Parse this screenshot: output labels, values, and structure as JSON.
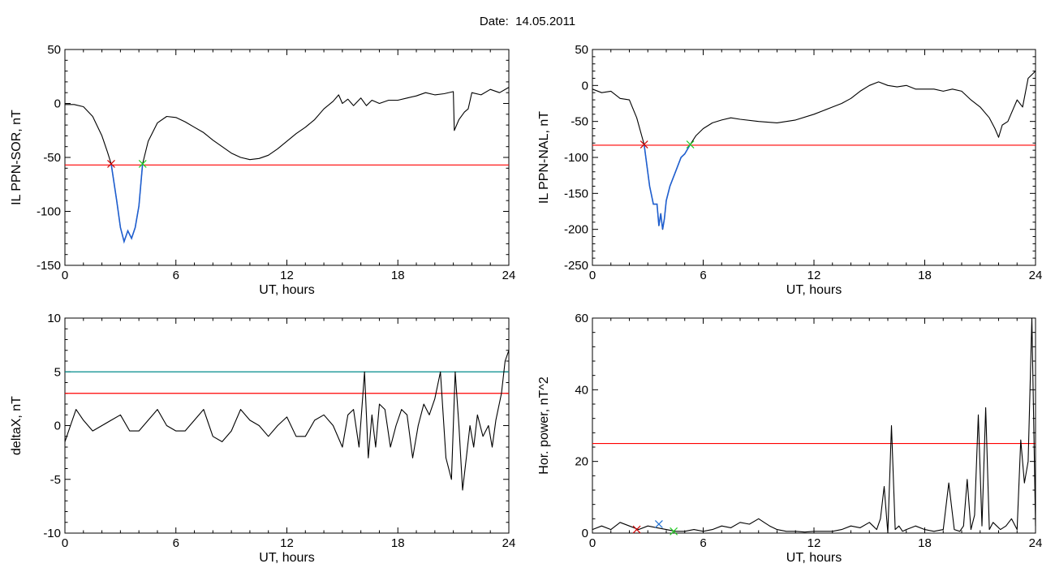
{
  "title": "Date:  14.05.2011",
  "colors": {
    "axis": "#000000",
    "data": "#000000",
    "threshold_red": "#ff0000",
    "threshold_cyan": "#008b8b",
    "interval": "#1f5fd0",
    "marker_start": "#cc0000",
    "marker_end": "#22cc22",
    "marker_blue": "#1f6fd0"
  },
  "chart_data": [
    {
      "type": "line",
      "title": "",
      "xlabel": "UT, hours",
      "ylabel": "IL PPN-SOR, nT",
      "xlim": [
        0,
        24
      ],
      "ylim": [
        -150,
        50
      ],
      "xticks": [
        0,
        6,
        12,
        18,
        24
      ],
      "yticks": [
        -150,
        -100,
        -50,
        0,
        50
      ],
      "threshold": {
        "y": -57,
        "color": "#ff0000"
      },
      "markers": [
        {
          "x": 2.5,
          "y": -56,
          "color": "#cc0000"
        },
        {
          "x": 4.2,
          "y": -56,
          "color": "#22cc22"
        }
      ],
      "highlight": {
        "from": 2.5,
        "to": 4.2,
        "color": "#1f5fd0"
      },
      "x": [
        0,
        0.5,
        1,
        1.5,
        2,
        2.3,
        2.5,
        2.8,
        3.0,
        3.2,
        3.4,
        3.6,
        3.8,
        4.0,
        4.2,
        4.5,
        5,
        5.5,
        6,
        6.5,
        7,
        7.5,
        8,
        8.5,
        9,
        9.5,
        10,
        10.5,
        11,
        11.5,
        12,
        12.5,
        13,
        13.5,
        14,
        14.5,
        14.8,
        15.0,
        15.3,
        15.6,
        16,
        16.3,
        16.6,
        17,
        17.5,
        18,
        18.5,
        19,
        19.5,
        20,
        20.5,
        21,
        21.05,
        21.3,
        21.6,
        21.8,
        22,
        22.5,
        23,
        23.5,
        24
      ],
      "y": [
        -1,
        -1,
        -3,
        -12,
        -30,
        -45,
        -56,
        -90,
        -115,
        -128,
        -118,
        -125,
        -115,
        -95,
        -56,
        -35,
        -18,
        -12,
        -13,
        -17,
        -22,
        -27,
        -34,
        -40,
        -46,
        -50,
        -52,
        -51,
        -48,
        -42,
        -35,
        -28,
        -22,
        -15,
        -5,
        2,
        8,
        0,
        4,
        -2,
        5,
        -2,
        3,
        0,
        3,
        3,
        5,
        7,
        10,
        8,
        9,
        11,
        -25,
        -15,
        -8,
        -5,
        10,
        8,
        13,
        10,
        15
      ]
    },
    {
      "type": "line",
      "title": "",
      "xlabel": "UT, hours",
      "ylabel": "IL PPN-NAL, nT",
      "xlim": [
        0,
        24
      ],
      "ylim": [
        -250,
        50
      ],
      "xticks": [
        0,
        6,
        12,
        18,
        24
      ],
      "yticks": [
        -250,
        -200,
        -150,
        -100,
        -50,
        0,
        50
      ],
      "threshold": {
        "y": -83,
        "color": "#ff0000"
      },
      "markers": [
        {
          "x": 2.8,
          "y": -82,
          "color": "#cc0000"
        },
        {
          "x": 5.3,
          "y": -82,
          "color": "#22cc22"
        }
      ],
      "highlight": {
        "from": 2.8,
        "to": 5.3,
        "color": "#1f5fd0"
      },
      "x": [
        0,
        0.5,
        1,
        1.5,
        2,
        2.4,
        2.8,
        3.1,
        3.3,
        3.5,
        3.6,
        3.7,
        3.8,
        3.9,
        4.0,
        4.2,
        4.5,
        4.8,
        5.0,
        5.3,
        5.6,
        6,
        6.5,
        7,
        7.5,
        8,
        9,
        10,
        11,
        12,
        12.5,
        13,
        13.5,
        14,
        14.5,
        15,
        15.5,
        16,
        16.5,
        17,
        17.5,
        18,
        18.5,
        19,
        19.5,
        20,
        20.5,
        21,
        21.5,
        21.8,
        22,
        22.2,
        22.5,
        23,
        23.3,
        23.6,
        24
      ],
      "y": [
        -5,
        -10,
        -8,
        -18,
        -20,
        -45,
        -82,
        -140,
        -165,
        -165,
        -195,
        -178,
        -200,
        -185,
        -160,
        -140,
        -120,
        -100,
        -95,
        -82,
        -70,
        -60,
        -52,
        -48,
        -45,
        -47,
        -50,
        -52,
        -48,
        -40,
        -35,
        -30,
        -25,
        -18,
        -8,
        0,
        5,
        0,
        -2,
        0,
        -5,
        -5,
        -5,
        -8,
        -5,
        -8,
        -20,
        -30,
        -45,
        -60,
        -72,
        -55,
        -50,
        -20,
        -30,
        10,
        20
      ]
    },
    {
      "type": "line",
      "title": "",
      "xlabel": "UT, hours",
      "ylabel": "deltaX, nT",
      "xlim": [
        0,
        24
      ],
      "ylim": [
        -10,
        10
      ],
      "xticks": [
        0,
        6,
        12,
        18,
        24
      ],
      "yticks": [
        -10,
        -5,
        0,
        5,
        10
      ],
      "thresholds": [
        {
          "y": 5,
          "color": "#008b8b"
        },
        {
          "y": 3,
          "color": "#ff0000"
        }
      ],
      "x": [
        0,
        0.3,
        0.6,
        1,
        1.5,
        2,
        2.5,
        3,
        3.5,
        4,
        4.5,
        5,
        5.5,
        6,
        6.5,
        7,
        7.5,
        8,
        8.5,
        9,
        9.5,
        10,
        10.5,
        11,
        11.5,
        12,
        12.5,
        13,
        13.5,
        14,
        14.5,
        15,
        15.3,
        15.6,
        15.9,
        16.2,
        16.4,
        16.6,
        16.8,
        17,
        17.3,
        17.6,
        17.9,
        18.2,
        18.5,
        18.8,
        19.1,
        19.4,
        19.7,
        20,
        20.3,
        20.6,
        20.9,
        21.1,
        21.3,
        21.5,
        21.7,
        21.9,
        22.1,
        22.3,
        22.6,
        22.9,
        23.1,
        23.3,
        23.6,
        23.8,
        24
      ],
      "y": [
        -1.5,
        0,
        1.5,
        0.5,
        -0.5,
        0,
        0.5,
        1,
        -0.5,
        -0.5,
        0.5,
        1.5,
        0,
        -0.5,
        -0.5,
        0.5,
        1.5,
        -1,
        -1.5,
        -0.5,
        1.5,
        0.5,
        0,
        -1,
        0,
        0.8,
        -1,
        -1,
        0.5,
        1,
        0,
        -2,
        1,
        1.5,
        -2,
        5,
        -3,
        1,
        -2,
        2,
        1.5,
        -2,
        0,
        1.5,
        1,
        -3,
        0,
        2,
        1,
        2.5,
        5,
        -3,
        -5,
        5,
        0,
        -6,
        -3,
        0,
        -2,
        1,
        -1,
        0,
        -2,
        0.5,
        3,
        6,
        7
      ]
    },
    {
      "type": "line",
      "title": "",
      "xlabel": "UT, hours",
      "ylabel": "Hor. power, nT^2",
      "xlim": [
        0,
        24
      ],
      "ylim": [
        0,
        60
      ],
      "xticks": [
        0,
        6,
        12,
        18,
        24
      ],
      "yticks": [
        0,
        20,
        40,
        60
      ],
      "threshold": {
        "y": 25,
        "color": "#ff0000"
      },
      "markers": [
        {
          "x": 2.4,
          "y": 1,
          "color": "#cc0000"
        },
        {
          "x": 3.6,
          "y": 2.5,
          "color": "#1f6fd0"
        },
        {
          "x": 4.4,
          "y": 0.5,
          "color": "#22cc22"
        }
      ],
      "x": [
        0,
        0.5,
        1,
        1.5,
        2,
        2.5,
        3,
        3.5,
        4,
        4.5,
        5,
        5.5,
        6,
        6.5,
        7,
        7.5,
        8,
        8.5,
        9,
        9.3,
        9.6,
        10,
        10.5,
        11,
        11.5,
        12,
        12.5,
        13,
        13.5,
        14,
        14.5,
        15,
        15.2,
        15.4,
        15.6,
        15.8,
        16,
        16.2,
        16.4,
        16.6,
        16.8,
        17,
        17.5,
        18,
        18.5,
        19,
        19.3,
        19.6,
        19.9,
        20.1,
        20.3,
        20.5,
        20.7,
        20.9,
        21.1,
        21.3,
        21.5,
        21.7,
        21.9,
        22.1,
        22.4,
        22.7,
        23,
        23.2,
        23.4,
        23.6,
        23.8,
        24
      ],
      "y": [
        1,
        2,
        1,
        3,
        2,
        1,
        2,
        1.5,
        1,
        0.5,
        0.5,
        1,
        0.5,
        1,
        2,
        1.5,
        3,
        2.5,
        4,
        3,
        2,
        1,
        0.5,
        0.5,
        0.3,
        0.5,
        0.5,
        0.5,
        1,
        2,
        1.5,
        3,
        2,
        1,
        4,
        13,
        0,
        30,
        1,
        2,
        0.5,
        1,
        2,
        1,
        0.5,
        1,
        14,
        1,
        0.5,
        2,
        15,
        1,
        5,
        33,
        2,
        35,
        1,
        3,
        2,
        1,
        2,
        4,
        1,
        26,
        14,
        20,
        60,
        2
      ]
    }
  ]
}
